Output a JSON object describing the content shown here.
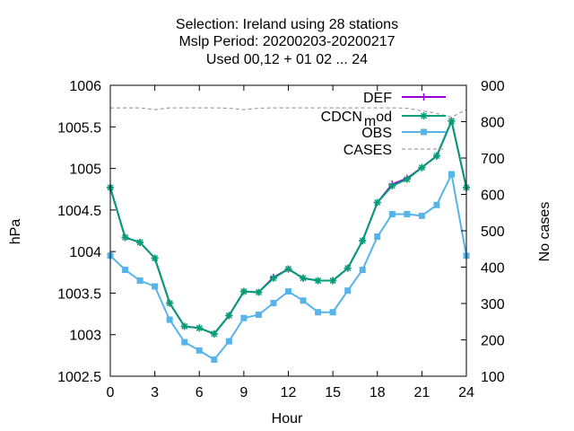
{
  "title_lines": [
    "Selection: Ireland using    28 stations",
    "Mslp   Period: 20200203-20200217",
    "Used  00,12  + 01 02 ... 24"
  ],
  "chart_data": {
    "type": "line",
    "xlabel": "Hour",
    "ylabel": "hPa",
    "y2label": "No cases",
    "xlim": [
      0,
      24
    ],
    "ylim": [
      1002.5,
      1006
    ],
    "y2lim": [
      100,
      900
    ],
    "x_ticks": [
      "0",
      "3",
      "6",
      "9",
      "12",
      "15",
      "18",
      "21",
      "24"
    ],
    "y_ticks": [
      "1006",
      "1005.5",
      "1005",
      "1004.5",
      "1004",
      "1003.5",
      "1003",
      "1002.5"
    ],
    "y2_ticks": [
      "900",
      "800",
      "700",
      "600",
      "500",
      "400",
      "300",
      "200",
      "100"
    ],
    "grid": false,
    "legend_position": "top-right",
    "x": [
      0,
      1,
      2,
      3,
      4,
      5,
      6,
      7,
      8,
      9,
      10,
      11,
      12,
      13,
      14,
      15,
      16,
      17,
      18,
      19,
      20,
      21,
      22,
      23,
      24
    ],
    "series": [
      {
        "name": "DEF",
        "axis": "left",
        "color": "#9400d3",
        "marker": "plus",
        "values": [
          1004.77,
          1004.17,
          1004.11,
          1003.92,
          1003.38,
          1003.1,
          1003.08,
          1003.01,
          1003.23,
          1003.52,
          1003.51,
          1003.69,
          1003.79,
          1003.68,
          1003.65,
          1003.65,
          1003.8,
          1004.13,
          1004.59,
          1004.81,
          1004.88,
          1005.01,
          1005.15,
          1005.57,
          1004.77
        ]
      },
      {
        "name": "CDCN_mod",
        "legend_label": {
          "base": "CDCN",
          "sub": "m",
          "rest": "od"
        },
        "axis": "left",
        "color": "#009e73",
        "marker": "star",
        "values": [
          1004.77,
          1004.17,
          1004.11,
          1003.92,
          1003.38,
          1003.1,
          1003.08,
          1003.01,
          1003.23,
          1003.52,
          1003.51,
          1003.68,
          1003.79,
          1003.68,
          1003.65,
          1003.65,
          1003.8,
          1004.13,
          1004.59,
          1004.79,
          1004.87,
          1005.01,
          1005.15,
          1005.57,
          1004.77
        ]
      },
      {
        "name": "OBS",
        "axis": "left",
        "color": "#56b4e9",
        "marker": "box",
        "values": [
          1003.95,
          1003.78,
          1003.65,
          1003.58,
          1003.18,
          1002.91,
          1002.81,
          1002.7,
          1002.92,
          1003.2,
          1003.24,
          1003.38,
          1003.52,
          1003.41,
          1003.27,
          1003.27,
          1003.53,
          1003.78,
          1004.18,
          1004.45,
          1004.45,
          1004.43,
          1004.56,
          1004.93,
          1003.95
        ]
      },
      {
        "name": "CASES",
        "axis": "right",
        "color": "#a0a0a0",
        "style": "dashed",
        "values": [
          838,
          838,
          838,
          833,
          838,
          838,
          838,
          838,
          837,
          833,
          837,
          838,
          838,
          838,
          838,
          838,
          838,
          838,
          838,
          838,
          837,
          830,
          823,
          812,
          833
        ]
      }
    ]
  }
}
